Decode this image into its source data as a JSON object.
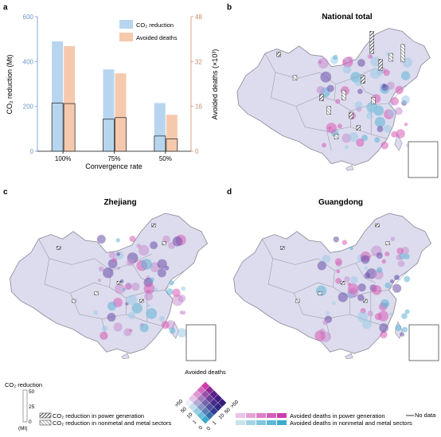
{
  "panels": {
    "a": {
      "label": "a"
    },
    "b": {
      "label": "b",
      "title": "National total"
    },
    "c": {
      "label": "c",
      "title": "Zhejiang"
    },
    "d": {
      "label": "d",
      "title": "Guangdong"
    }
  },
  "chart_data": {
    "type": "bar",
    "categories": [
      "100%",
      "75%",
      "50%"
    ],
    "xlabel": "Convergence rate",
    "ylabel_left": "CO₂ reduction (Mt)",
    "ylabel_right": "Avoided deaths (×10³)",
    "ylim_left": [
      0,
      600
    ],
    "ylim_right": [
      0,
      48
    ],
    "yticks_left": [
      "0",
      "200",
      "400",
      "600"
    ],
    "yticks_right": [
      "0",
      "16",
      "32",
      "48"
    ],
    "series": [
      {
        "name": "CO₂ reduction",
        "axis": "left",
        "color": "#b7d5ee",
        "values": [
          490,
          365,
          215
        ],
        "sub_values": [
          215,
          143,
          68
        ]
      },
      {
        "name": "Avoided deaths",
        "axis": "right",
        "color": "#f6c9ad",
        "values": [
          37.5,
          27.8,
          13.0
        ],
        "sub_values": [
          17.0,
          12.0,
          4.4
        ]
      }
    ],
    "legend_position": "top-right",
    "grid": false
  },
  "legend": {
    "co2_title": "CO₂ reduction",
    "co2_scale": [
      "50",
      "25",
      "0"
    ],
    "co2_unit": "(Mt)",
    "hatch_power": "CO₂ reduction in power generation",
    "hatch_metal": "CO₂ reduction in nonmetal and metal sectors",
    "bivariate_title": "Avoided deaths",
    "bivariate_left_labels": [
      ">50",
      "50",
      "10",
      "1",
      "0"
    ],
    "bivariate_right_labels": [
      "0",
      "1",
      "10",
      "50",
      ">50"
    ],
    "deaths_power": "Avoided deaths in power generation",
    "deaths_metal": "Avoided deaths in nonmetal and metal sectors",
    "no_data": "No data"
  },
  "colors": {
    "map_fill": "#dcdcee",
    "map_stroke": "#8c8c9a",
    "blue": "#5fb3d6",
    "magenta": "#d95bb4",
    "purple": "#6b4ea8"
  }
}
